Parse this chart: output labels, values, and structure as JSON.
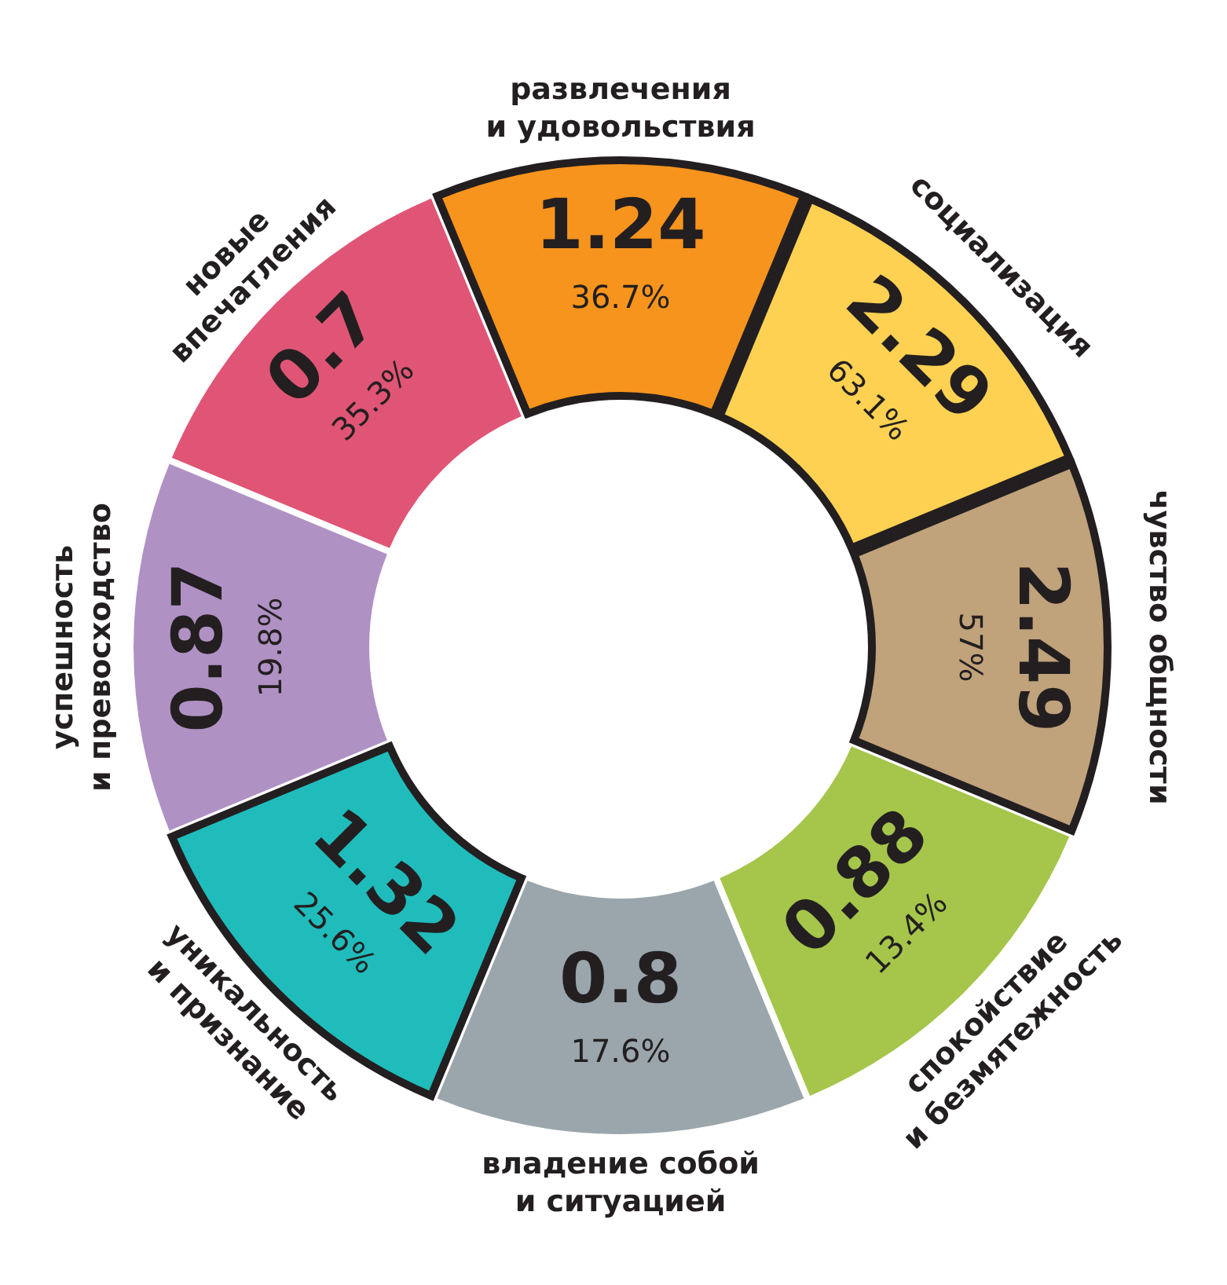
{
  "chart_data": {
    "type": "other",
    "categories": [
      "развлечения\nи удовольствия",
      "социализация",
      "чувство общности",
      "спокойствие\nи безмятежность",
      "владение собой\nи ситуацией",
      "уникальность\nи признание",
      "успешность\nи превосходство",
      "новые\nвпечатления"
    ],
    "series": [
      {
        "values": [
          1.24,
          2.29,
          2.49,
          0.88,
          0.8,
          1.32,
          0.87,
          0.7
        ],
        "colors": [
          "#f7941d",
          "#fed152",
          "#c0a27b",
          "#a5c64b",
          "#9aa6ab",
          "#20bcbc",
          "#b091c4",
          "#e05575"
        ]
      },
      {
        "values": [
          36.7,
          63.1,
          57,
          13.4,
          17.6,
          25.6,
          19.8,
          35.3
        ],
        "value_labels": [
          "36.7%",
          "63.1%",
          "57%",
          "13.4%",
          "17.6%",
          "25.6%",
          "19.8%",
          "35.3%"
        ]
      }
    ],
    "data_labels": true
  }
}
